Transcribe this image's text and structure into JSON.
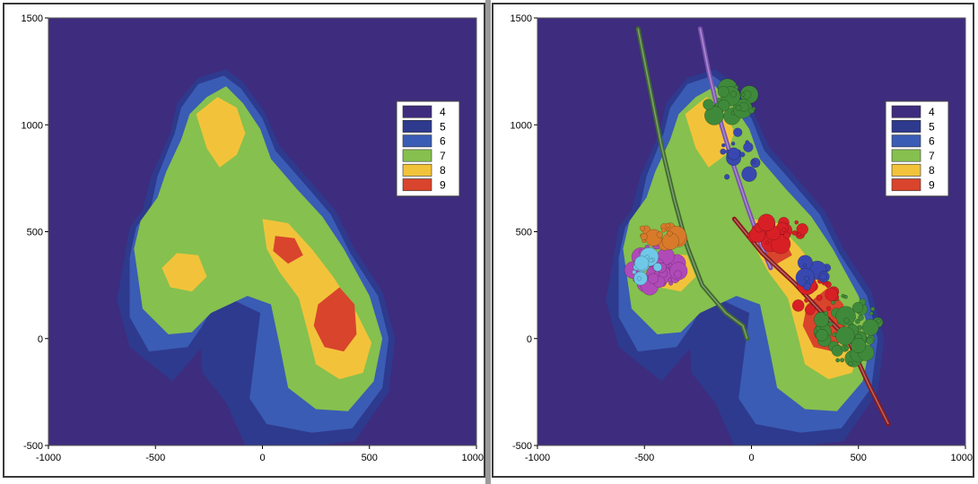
{
  "palette": {
    "4": "#3e2c7e",
    "5": "#2e3a8e",
    "6": "#3a5cb4",
    "7": "#86c04e",
    "8": "#f2c33a",
    "9": "#d9442c",
    "bg": "#3e2c7e"
  },
  "panels": [
    {
      "id": "contour-map",
      "chart_data": {
        "type": "heatmap",
        "xlim": [
          -1000,
          1000
        ],
        "ylim": [
          -500,
          1500
        ],
        "xticks": [
          "-1000",
          "-500",
          "0",
          "500",
          "1000"
        ],
        "yticks": [
          "-500",
          "0",
          "500",
          "1000",
          "1500"
        ],
        "legend": [
          "4",
          "5",
          "6",
          "7",
          "8",
          "9"
        ],
        "legend_position": "right"
      }
    },
    {
      "id": "contour-map-with-events",
      "chart_data": {
        "type": "scatter",
        "xlim": [
          -1000,
          1000
        ],
        "ylim": [
          -500,
          1500
        ],
        "xticks": [
          "-1000",
          "-500",
          "0",
          "500",
          "1000"
        ],
        "yticks": [
          "-500",
          "0",
          "500",
          "1000",
          "1500"
        ],
        "legend": [
          "4",
          "5",
          "6",
          "7",
          "8",
          "9"
        ],
        "legend_position": "right",
        "wells": [
          {
            "color": "#3f6a2c",
            "points": [
              [
                -530,
                1450
              ],
              [
                -470,
                1150
              ],
              [
                -420,
                900
              ],
              [
                -360,
                650
              ],
              [
                -300,
                430
              ],
              [
                -230,
                250
              ],
              [
                -120,
                120
              ],
              [
                -40,
                60
              ],
              [
                -20,
                0
              ]
            ]
          },
          {
            "color": "#7a52b0",
            "points": [
              [
                -240,
                1450
              ],
              [
                -200,
                1250
              ],
              [
                -140,
                1000
              ],
              [
                -80,
                800
              ],
              [
                -20,
                620
              ],
              [
                40,
                450
              ],
              [
                90,
                330
              ]
            ]
          },
          {
            "color": "#8a1a1a",
            "points": [
              [
                -80,
                560
              ],
              [
                50,
                400
              ],
              [
                200,
                260
              ],
              [
                330,
                120
              ],
              [
                450,
                0
              ],
              [
                550,
                -220
              ],
              [
                640,
                -400
              ]
            ]
          }
        ],
        "event_clusters": [
          {
            "color": "#3f8a3a",
            "center": [
              -100,
              1100
            ],
            "spread": [
              120,
              80
            ],
            "count": 30
          },
          {
            "color": "#3f8a3a",
            "center": [
              450,
              50
            ],
            "spread": [
              150,
              170
            ],
            "count": 55
          },
          {
            "color": "#d81f26",
            "center": [
              130,
              500
            ],
            "spread": [
              130,
              60
            ],
            "count": 38
          },
          {
            "color": "#d81f26",
            "center": [
              300,
              200
            ],
            "spread": [
              100,
              100
            ],
            "count": 18
          },
          {
            "color": "#3848b0",
            "center": [
              -60,
              850
            ],
            "spread": [
              90,
              120
            ],
            "count": 16
          },
          {
            "color": "#3848b0",
            "center": [
              280,
              300
            ],
            "spread": [
              90,
              60
            ],
            "count": 10
          },
          {
            "color": "#b04ab8",
            "center": [
              -450,
              350
            ],
            "spread": [
              120,
              120
            ],
            "count": 40
          },
          {
            "color": "#d87a2a",
            "center": [
              -430,
              480
            ],
            "spread": [
              120,
              60
            ],
            "count": 18
          },
          {
            "color": "#70c8e8",
            "center": [
              -500,
              330
            ],
            "spread": [
              70,
              60
            ],
            "count": 12
          }
        ]
      }
    }
  ]
}
